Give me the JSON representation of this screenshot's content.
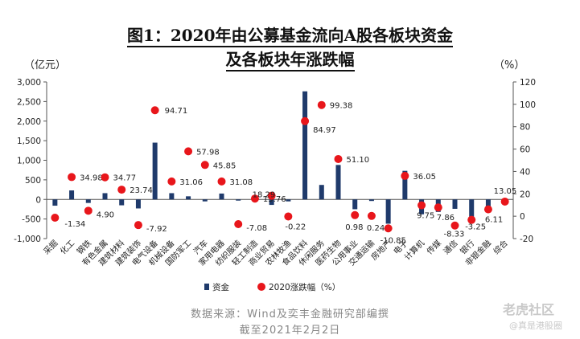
{
  "title_line1": "图1：2020年由公募基金流向A股各板块资金",
  "title_line2": "及各板块年涨跌幅",
  "left_unit": "（亿元）",
  "right_unit": "（%）",
  "source_line1": "数据来源：Wind及奕丰金融研究部编撰",
  "source_line2": "截至2021年2月2日",
  "watermark": {
    "brand": "老虎社区",
    "handle": "@真是港股圈"
  },
  "colors": {
    "bar": "#1f3a6b",
    "dot": "#e8161b"
  },
  "chart_data": {
    "type": "bar",
    "categories": [
      "采掘",
      "化工",
      "钢铁",
      "有色金属",
      "建筑材料",
      "建筑装饰",
      "电气设备",
      "机械设备",
      "国防军工",
      "汽车",
      "家用电器",
      "纺织服装",
      "轻工制造",
      "商业贸易",
      "农林牧渔",
      "食品饮料",
      "休闲服务",
      "医药生物",
      "公用事业",
      "交通运输",
      "房地产",
      "电子",
      "计算机",
      "传媒",
      "通信",
      "银行",
      "非银金融",
      "综合"
    ],
    "series": [
      {
        "name": "资金",
        "type": "bar",
        "axis": "left",
        "values": [
          -160,
          230,
          -90,
          160,
          -150,
          -230,
          1450,
          160,
          80,
          -50,
          150,
          -30,
          -10,
          -140,
          -50,
          2760,
          370,
          880,
          -250,
          -40,
          -620,
          730,
          -380,
          -320,
          -240,
          -560,
          -260,
          -10
        ]
      },
      {
        "name": "2020涨跌幅（%）",
        "type": "scatter",
        "axis": "right",
        "values": [
          -1.34,
          34.98,
          4.9,
          34.77,
          23.74,
          -7.92,
          94.71,
          31.06,
          57.98,
          45.85,
          31.08,
          -7.08,
          15.76,
          18.29,
          -0.22,
          84.97,
          99.38,
          51.1,
          0.98,
          0.24,
          -10.85,
          36.05,
          9.75,
          7.86,
          -8.33,
          -3.25,
          6.11,
          13.05
        ]
      }
    ],
    "labels": [
      "-1.34",
      "34.98",
      "4.90",
      "34.77",
      "23.74",
      "-7.92",
      "94.71",
      "31.06",
      "57.98",
      "45.85",
      "31.08",
      "-7.08",
      "15.76",
      "18.29",
      "-0.22",
      "84.97",
      "99.38",
      "51.10",
      "0.98",
      "0.24",
      "-10.85",
      "36.05",
      "9.75",
      "7.86",
      "-8.33",
      "-3.25",
      "6.11",
      "13.05"
    ],
    "ylim_left": [
      -1000,
      3000
    ],
    "yticks_left": [
      "-1,000",
      "-500",
      "0",
      "500",
      "1,000",
      "1,500",
      "2,000",
      "2,500",
      "3,000"
    ],
    "ylim_right": [
      -20,
      120
    ],
    "yticks_right": [
      "-20",
      "0",
      "20",
      "40",
      "60",
      "80",
      "100",
      "120"
    ],
    "legend": [
      "资金",
      "2020涨跌幅（%）"
    ],
    "legend_position": "bottom",
    "grid": false
  }
}
